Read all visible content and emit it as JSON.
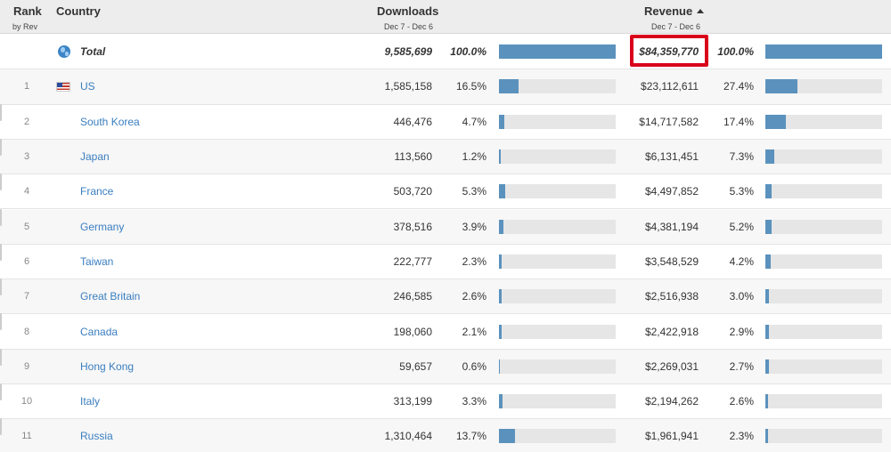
{
  "header": {
    "rank_label": "Rank",
    "rank_sub": "by Rev",
    "country_label": "Country",
    "downloads_label": "Downloads",
    "downloads_range": "Dec 7 - Dec 6",
    "revenue_label": "Revenue",
    "revenue_range": "Dec 7 - Dec 6"
  },
  "total": {
    "label": "Total",
    "downloads": "9,585,699",
    "downloads_pct": "100.0%",
    "downloads_share": 1.0,
    "revenue": "$84,359,770",
    "revenue_pct": "100.0%",
    "revenue_share": 1.0
  },
  "rows": [
    {
      "rank": "1",
      "country": "US",
      "flag": "us-flag-icon",
      "downloads": "1,585,158",
      "downloads_pct": "16.5%",
      "downloads_share": 0.165,
      "revenue": "$23,112,611",
      "revenue_pct": "27.4%",
      "revenue_share": 0.274
    },
    {
      "rank": "2",
      "country": "South Korea",
      "flag": "kr-flag-icon",
      "downloads": "446,476",
      "downloads_pct": "4.7%",
      "downloads_share": 0.047,
      "revenue": "$14,717,582",
      "revenue_pct": "17.4%",
      "revenue_share": 0.174
    },
    {
      "rank": "3",
      "country": "Japan",
      "flag": "jp-flag-icon",
      "downloads": "113,560",
      "downloads_pct": "1.2%",
      "downloads_share": 0.012,
      "revenue": "$6,131,451",
      "revenue_pct": "7.3%",
      "revenue_share": 0.073
    },
    {
      "rank": "4",
      "country": "France",
      "flag": "fr-flag-icon",
      "downloads": "503,720",
      "downloads_pct": "5.3%",
      "downloads_share": 0.053,
      "revenue": "$4,497,852",
      "revenue_pct": "5.3%",
      "revenue_share": 0.053
    },
    {
      "rank": "5",
      "country": "Germany",
      "flag": "de-flag-icon",
      "downloads": "378,516",
      "downloads_pct": "3.9%",
      "downloads_share": 0.039,
      "revenue": "$4,381,194",
      "revenue_pct": "5.2%",
      "revenue_share": 0.052
    },
    {
      "rank": "6",
      "country": "Taiwan",
      "flag": "tw-flag-icon",
      "downloads": "222,777",
      "downloads_pct": "2.3%",
      "downloads_share": 0.023,
      "revenue": "$3,548,529",
      "revenue_pct": "4.2%",
      "revenue_share": 0.042
    },
    {
      "rank": "7",
      "country": "Great Britain",
      "flag": "gb-flag-icon",
      "downloads": "246,585",
      "downloads_pct": "2.6%",
      "downloads_share": 0.026,
      "revenue": "$2,516,938",
      "revenue_pct": "3.0%",
      "revenue_share": 0.03
    },
    {
      "rank": "8",
      "country": "Canada",
      "flag": "ca-flag-icon",
      "downloads": "198,060",
      "downloads_pct": "2.1%",
      "downloads_share": 0.021,
      "revenue": "$2,422,918",
      "revenue_pct": "2.9%",
      "revenue_share": 0.029
    },
    {
      "rank": "9",
      "country": "Hong Kong",
      "flag": "hk-flag-icon",
      "downloads": "59,657",
      "downloads_pct": "0.6%",
      "downloads_share": 0.006,
      "revenue": "$2,269,031",
      "revenue_pct": "2.7%",
      "revenue_share": 0.027
    },
    {
      "rank": "10",
      "country": "Italy",
      "flag": "it-flag-icon",
      "downloads": "313,199",
      "downloads_pct": "3.3%",
      "downloads_share": 0.033,
      "revenue": "$2,194,262",
      "revenue_pct": "2.6%",
      "revenue_share": 0.026
    },
    {
      "rank": "11",
      "country": "Russia",
      "flag": "ru-flag-icon",
      "downloads": "1,310,464",
      "downloads_pct": "13.7%",
      "downloads_share": 0.137,
      "revenue": "$1,961,941",
      "revenue_pct": "2.3%",
      "revenue_share": 0.023
    }
  ],
  "colors": {
    "bar_fill": "#5b92bd",
    "bar_track": "#e6e6e6",
    "link": "#3a7ec0",
    "highlight": "#d9001b"
  }
}
